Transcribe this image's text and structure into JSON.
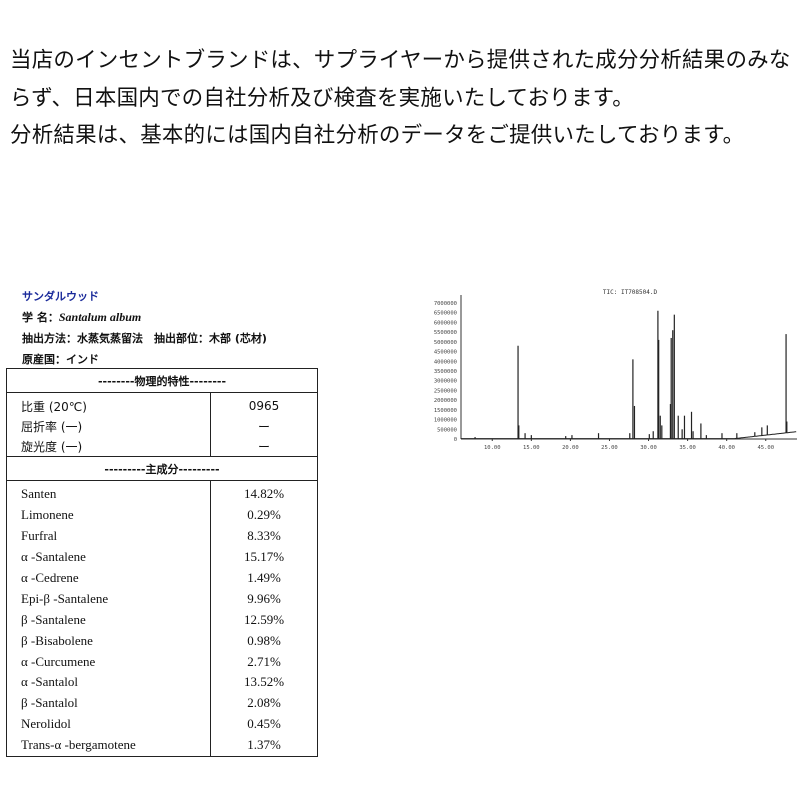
{
  "intro": {
    "paragraph1": "当店のインセントブランドは、サプライヤーから提供された成分分析結果のみならず、日本国内での自社分析及び検査を実施いたしております。",
    "paragraph2": "分析結果は、基本的には国内自社分析のデータをご提供いたしております。"
  },
  "info": {
    "title": "サンダルウッド",
    "scientific_label": "学 名：",
    "scientific_name": "Santalum album",
    "extraction": "抽出方法：水蒸気蒸留法　抽出部位：木部 (芯材)",
    "origin": "原産国：インド",
    "title_color": "#1a2a9a"
  },
  "physical": {
    "header": "--------物理的特性--------",
    "rows": [
      {
        "name": "比重 (20℃)",
        "value": "0965"
      },
      {
        "name": "屈折率 (一)",
        "value": "ー"
      },
      {
        "name": "旋光度 (一)",
        "value": "ー"
      }
    ]
  },
  "components": {
    "header": "---------主成分---------",
    "rows": [
      {
        "name": "Santen",
        "value": "14.82%"
      },
      {
        "name": "Limonene",
        "value": "0.29%"
      },
      {
        "name": "Furfral",
        "value": "8.33%"
      },
      {
        "name": "α -Santalene",
        "value": "15.17%"
      },
      {
        "name": "α -Cedrene",
        "value": "1.49%"
      },
      {
        "name": "Epi-β -Santalene",
        "value": "9.96%"
      },
      {
        "name": "β -Santalene",
        "value": "12.59%"
      },
      {
        "name": "β -Bisabolene",
        "value": "0.98%"
      },
      {
        "name": "α -Curcumene",
        "value": "2.71%"
      },
      {
        "name": "α -Santalol",
        "value": "13.52%"
      },
      {
        "name": "β -Santalol",
        "value": "2.08%"
      },
      {
        "name": "Nerolidol",
        "value": "0.45%"
      },
      {
        "name": "Trans-α -bergamotene",
        "value": "1.37%"
      }
    ]
  },
  "chart_data": {
    "type": "line",
    "title": "TIC: IT708504.D",
    "xlim": [
      6,
      49
    ],
    "ylim": [
      0,
      7000000
    ],
    "x_ticks": [
      "10.00",
      "15.00",
      "20.00",
      "25.00",
      "30.00",
      "35.00",
      "40.00",
      "45.00"
    ],
    "x_tick_values": [
      10,
      15,
      20,
      25,
      30,
      35,
      40,
      45
    ],
    "y_ticks": [
      "7000000",
      "6500000",
      "6000000",
      "5500000",
      "5000000",
      "4500000",
      "4000000",
      "3500000",
      "3000000",
      "2500000",
      "2000000",
      "1500000",
      "1000000",
      "500000",
      "0"
    ],
    "y_tick_values": [
      7000000,
      6500000,
      6000000,
      5500000,
      5000000,
      4500000,
      4000000,
      3500000,
      3000000,
      2500000,
      2000000,
      1500000,
      1000000,
      500000,
      0
    ],
    "peaks": [
      [
        7.8,
        100000
      ],
      [
        13.3,
        4800000
      ],
      [
        13.4,
        700000
      ],
      [
        14.2,
        300000
      ],
      [
        15.0,
        200000
      ],
      [
        19.4,
        150000
      ],
      [
        20.2,
        200000
      ],
      [
        23.6,
        300000
      ],
      [
        27.6,
        300000
      ],
      [
        28.0,
        4100000
      ],
      [
        28.2,
        1700000
      ],
      [
        30.1,
        250000
      ],
      [
        30.6,
        400000
      ],
      [
        31.2,
        6600000
      ],
      [
        31.3,
        5100000
      ],
      [
        31.5,
        1200000
      ],
      [
        31.7,
        700000
      ],
      [
        32.8,
        1800000
      ],
      [
        32.9,
        5200000
      ],
      [
        33.1,
        5600000
      ],
      [
        33.3,
        6400000
      ],
      [
        33.8,
        1200000
      ],
      [
        34.3,
        500000
      ],
      [
        34.6,
        1200000
      ],
      [
        35.5,
        1400000
      ],
      [
        35.7,
        400000
      ],
      [
        36.7,
        800000
      ],
      [
        37.4,
        200000
      ],
      [
        39.4,
        300000
      ],
      [
        41.3,
        300000
      ],
      [
        43.6,
        350000
      ],
      [
        44.5,
        600000
      ],
      [
        45.2,
        700000
      ],
      [
        47.6,
        5400000
      ],
      [
        47.7,
        900000
      ]
    ],
    "grid": false
  }
}
